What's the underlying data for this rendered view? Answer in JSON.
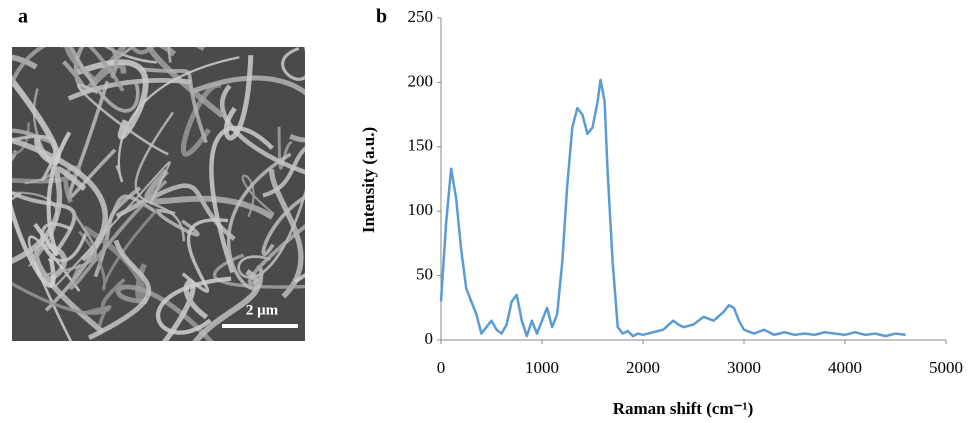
{
  "panel_a": {
    "label": "a",
    "scale_bar": "2 μm"
  },
  "chart_data": {
    "type": "line",
    "panel_label": "b",
    "x_label": "Raman shift (cm⁻¹)",
    "y_label": "Intensity (a.u.)",
    "x": [
      0,
      50,
      100,
      150,
      200,
      250,
      300,
      350,
      400,
      450,
      500,
      550,
      600,
      650,
      700,
      750,
      800,
      850,
      900,
      950,
      1000,
      1050,
      1100,
      1150,
      1200,
      1250,
      1300,
      1350,
      1400,
      1450,
      1500,
      1550,
      1580,
      1620,
      1650,
      1700,
      1750,
      1800,
      1850,
      1900,
      1950,
      2000,
      2100,
      2200,
      2300,
      2350,
      2400,
      2500,
      2600,
      2700,
      2800,
      2850,
      2900,
      2950,
      3000,
      3100,
      3200,
      3300,
      3400,
      3500,
      3600,
      3700,
      3800,
      3900,
      4000,
      4100,
      4200,
      4300,
      4400,
      4500,
      4600
    ],
    "values": [
      30,
      90,
      133,
      110,
      70,
      40,
      30,
      20,
      5,
      10,
      15,
      8,
      5,
      12,
      30,
      35,
      15,
      3,
      15,
      5,
      15,
      25,
      10,
      20,
      60,
      120,
      165,
      180,
      175,
      160,
      165,
      185,
      202,
      185,
      130,
      60,
      10,
      5,
      7,
      3,
      5,
      4,
      6,
      8,
      15,
      12,
      10,
      12,
      18,
      15,
      22,
      27,
      25,
      15,
      8,
      5,
      8,
      4,
      6,
      4,
      5,
      4,
      6,
      5,
      4,
      6,
      4,
      5,
      3,
      5,
      4
    ],
    "color": "#5b9bd5",
    "xlim": [
      0,
      5000
    ],
    "xticks": [
      0,
      1000,
      2000,
      3000,
      4000,
      5000
    ],
    "ylim": [
      0,
      250
    ],
    "yticks": [
      0,
      50,
      100,
      150,
      200,
      250
    ],
    "grid": false
  }
}
